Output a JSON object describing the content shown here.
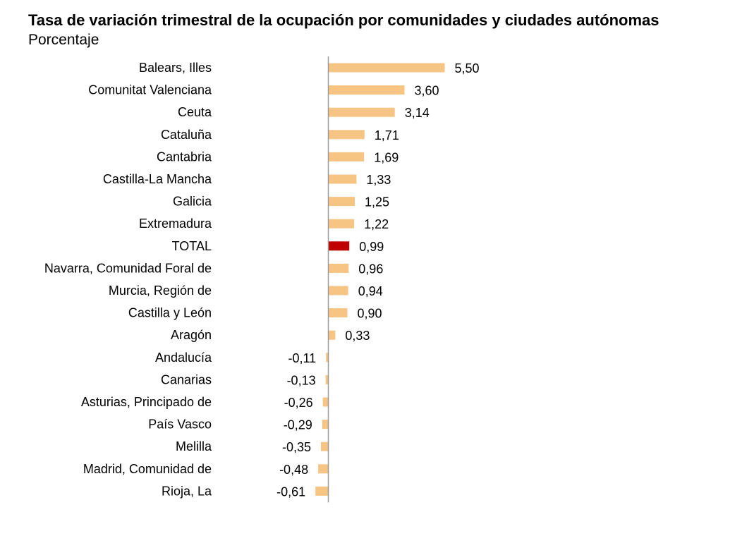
{
  "chart_data": {
    "type": "bar",
    "orientation": "horizontal",
    "title": "Tasa de variación trimestral de la ocupación por comunidades y ciudades autónomas",
    "subtitle": "Porcentaje",
    "categories": [
      "Balears, Illes",
      "Comunitat Valenciana",
      "Ceuta",
      "Cataluña",
      "Cantabria",
      "Castilla-La Mancha",
      "Galicia",
      "Extremadura",
      "TOTAL",
      "Navarra, Comunidad Foral de",
      "Murcia, Región de",
      "Castilla y León",
      "Aragón",
      "Andalucía",
      "Canarias",
      "Asturias, Principado de",
      "País Vasco",
      "Melilla",
      "Madrid, Comunidad de",
      "Rioja, La"
    ],
    "values": [
      5.5,
      3.6,
      3.14,
      1.71,
      1.69,
      1.33,
      1.25,
      1.22,
      0.99,
      0.96,
      0.94,
      0.9,
      0.33,
      -0.11,
      -0.13,
      -0.26,
      -0.29,
      -0.35,
      -0.48,
      -0.61
    ],
    "value_labels": [
      "5,50",
      "3,60",
      "3,14",
      "1,71",
      "1,69",
      "1,33",
      "1,25",
      "1,22",
      "0,99",
      "0,96",
      "0,94",
      "0,90",
      "0,33",
      "-0,11",
      "-0,13",
      "-0,26",
      "-0,29",
      "-0,35",
      "-0,48",
      "-0,61"
    ],
    "highlight_category": "TOTAL",
    "colors": {
      "bar": "#F6C584",
      "highlight": "#C00000",
      "axis": "#9A9A9A"
    },
    "grid": false,
    "legend": "none"
  }
}
